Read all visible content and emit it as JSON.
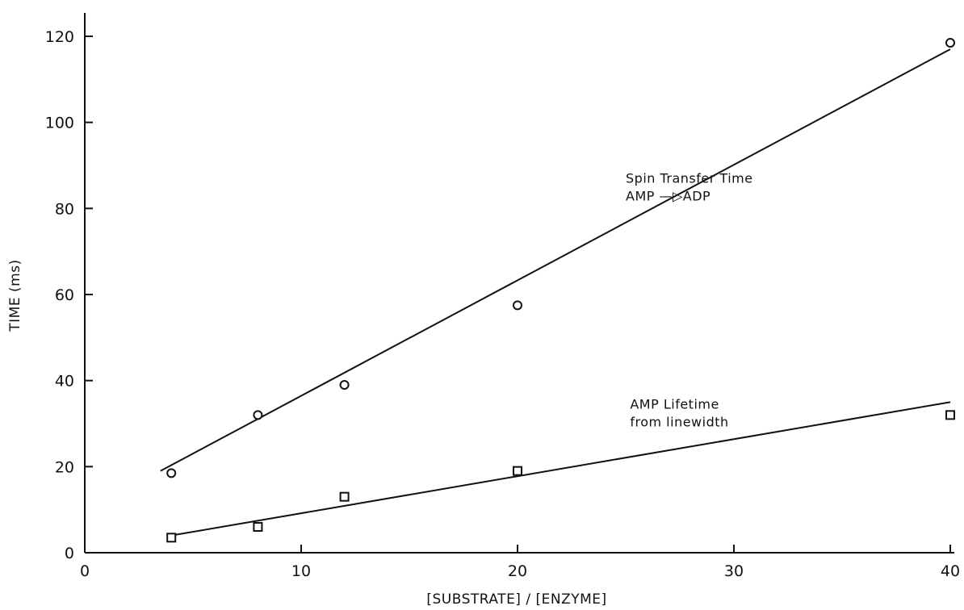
{
  "chart_data": {
    "type": "scatter",
    "title": "",
    "xlabel": "[SUBSTRATE] / [ENZYME]",
    "ylabel": "TIME (ms)",
    "xlim": [
      0,
      40
    ],
    "ylim": [
      0,
      120
    ],
    "x_ticks": [
      "0",
      "10",
      "20",
      "30",
      "40"
    ],
    "y_ticks": [
      "0",
      "20",
      "40",
      "60",
      "80",
      "100",
      "120"
    ],
    "grid": false,
    "legend": "none",
    "series": [
      {
        "marker": "circle",
        "x": [
          4,
          8,
          12,
          20,
          40
        ],
        "y": [
          18.5,
          32,
          39,
          57.5,
          118.5
        ],
        "fit_line": {
          "x": [
            3.5,
            40
          ],
          "y": [
            19,
            117
          ]
        }
      },
      {
        "marker": "square",
        "x": [
          4,
          8,
          12,
          20,
          40
        ],
        "y": [
          3.5,
          6,
          13,
          19,
          32
        ],
        "fit_line": {
          "x": [
            4,
            40
          ],
          "y": [
            4,
            35
          ]
        }
      }
    ],
    "annotations": [
      {
        "lines": [
          "Spin Transfer Time",
          "AMP —▷ADP"
        ],
        "x": 25,
        "y": 86
      },
      {
        "lines": [
          "AMP Lifetime",
          "from linewidth"
        ],
        "x": 25.2,
        "y": 33.5
      }
    ]
  }
}
